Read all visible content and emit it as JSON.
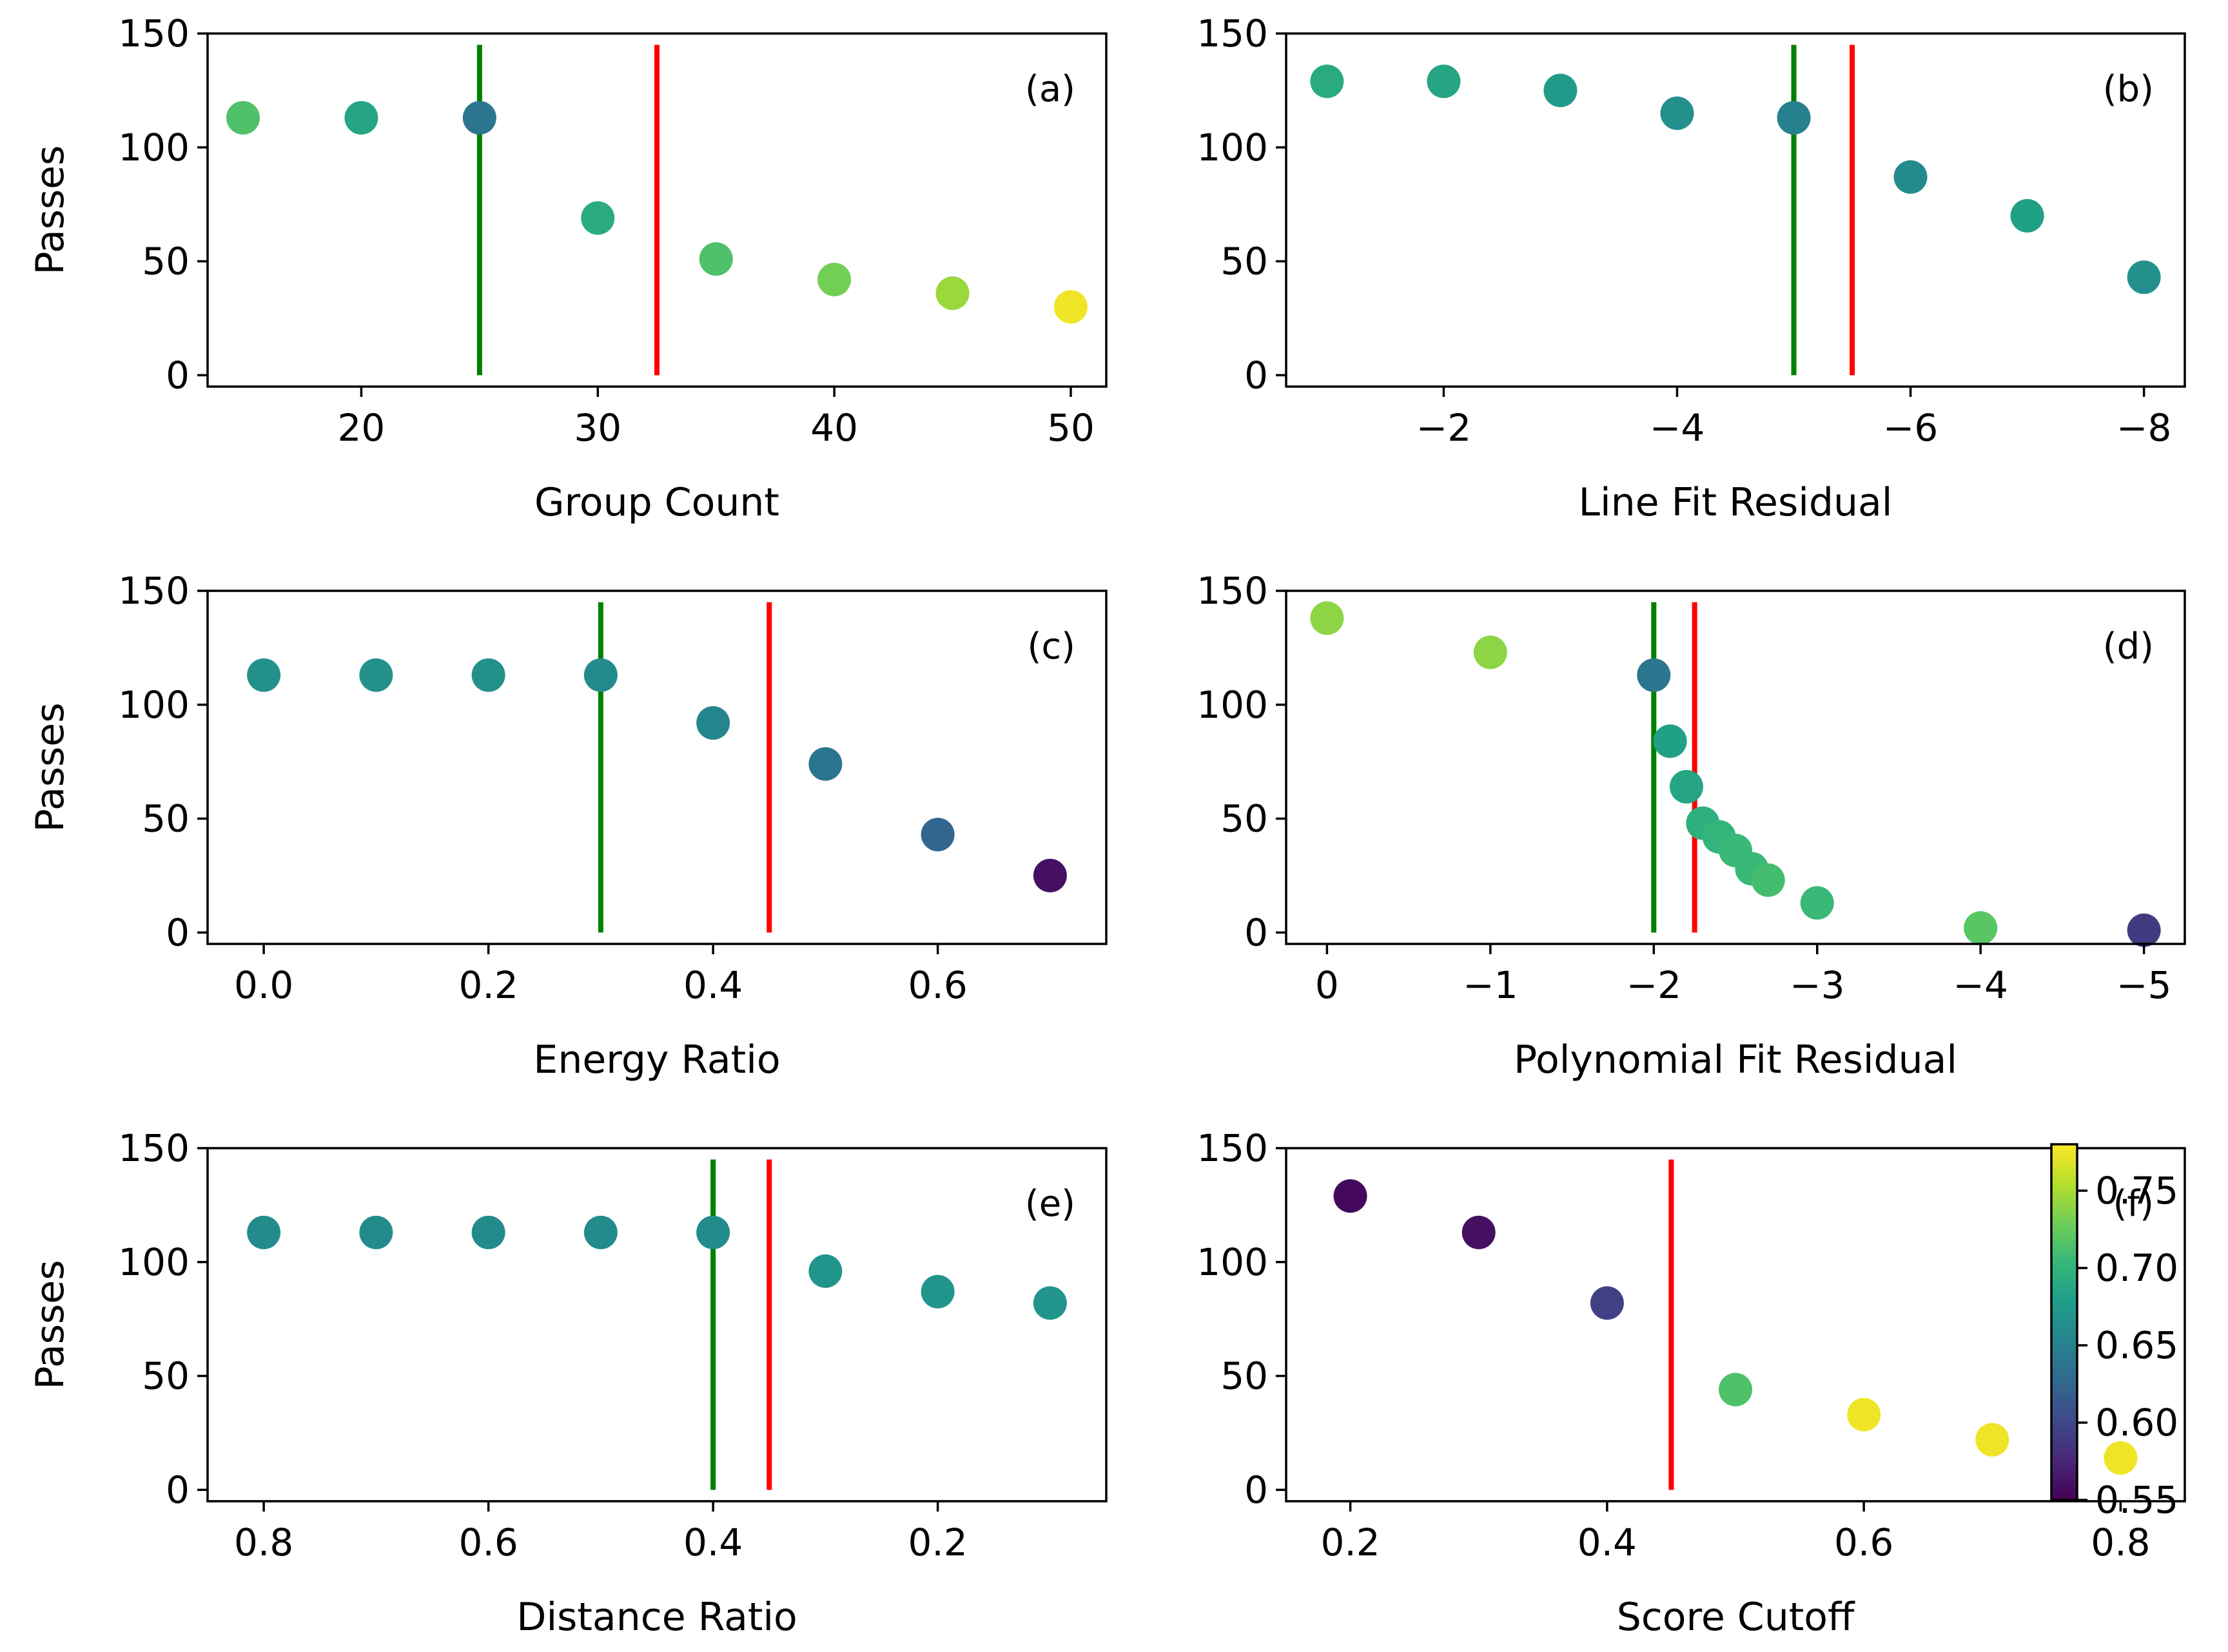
{
  "chart_data": [
    {
      "type": "scatter",
      "panel": "(a)",
      "xlabel": "Group Count",
      "ylabel": "Passes",
      "xlim": [
        13.5,
        51.5
      ],
      "ylim": [
        -5,
        150
      ],
      "xticks": [
        20,
        30,
        40,
        50
      ],
      "xtick_labels": [
        "20",
        "30",
        "40",
        "50"
      ],
      "yticks": [
        0,
        50,
        100,
        150
      ],
      "ytick_labels": [
        "0",
        "50",
        "100",
        "150"
      ],
      "points": [
        {
          "x": 15,
          "y": 113,
          "c": 0.715
        },
        {
          "x": 20,
          "y": 113,
          "c": 0.685
        },
        {
          "x": 25,
          "y": 113,
          "c": 0.64
        },
        {
          "x": 30,
          "y": 69,
          "c": 0.69
        },
        {
          "x": 35,
          "y": 51,
          "c": 0.715
        },
        {
          "x": 40,
          "y": 42,
          "c": 0.73
        },
        {
          "x": 45,
          "y": 36,
          "c": 0.745
        },
        {
          "x": 50,
          "y": 30,
          "c": 0.775
        }
      ],
      "vlines": [
        {
          "x": 25,
          "color": "#008000"
        },
        {
          "x": 32.5,
          "color": "#ff0000"
        }
      ]
    },
    {
      "type": "scatter",
      "panel": "(b)",
      "xlabel": "Line Fit Residual",
      "ylabel": "",
      "xlim": [
        -0.65,
        -8.35
      ],
      "ylim": [
        -5,
        150
      ],
      "xticks": [
        -2,
        -4,
        -6,
        -8
      ],
      "xtick_labels": [
        "−2",
        "−4",
        "−6",
        "−8"
      ],
      "yticks": [
        0,
        50,
        100,
        150
      ],
      "ytick_labels": [
        "0",
        "50",
        "100",
        "150"
      ],
      "points": [
        {
          "x": -1,
          "y": 129,
          "c": 0.69
        },
        {
          "x": -2,
          "y": 129,
          "c": 0.685
        },
        {
          "x": -3,
          "y": 125,
          "c": 0.675
        },
        {
          "x": -4,
          "y": 115,
          "c": 0.665
        },
        {
          "x": -5,
          "y": 113,
          "c": 0.65
        },
        {
          "x": -6,
          "y": 87,
          "c": 0.66
        },
        {
          "x": -7,
          "y": 70,
          "c": 0.68
        },
        {
          "x": -8,
          "y": 43,
          "c": 0.665
        }
      ],
      "vlines": [
        {
          "x": -5,
          "color": "#008000"
        },
        {
          "x": -5.5,
          "color": "#ff0000"
        }
      ]
    },
    {
      "type": "scatter",
      "panel": "(c)",
      "xlabel": "Energy Ratio",
      "ylabel": "Passes",
      "xlim": [
        -0.05,
        0.75
      ],
      "ylim": [
        -5,
        150
      ],
      "xticks": [
        0.0,
        0.2,
        0.4,
        0.6
      ],
      "xtick_labels": [
        "0.0",
        "0.2",
        "0.4",
        "0.6"
      ],
      "yticks": [
        0,
        50,
        100,
        150
      ],
      "ytick_labels": [
        "0",
        "50",
        "100",
        "150"
      ],
      "points": [
        {
          "x": 0.0,
          "y": 113,
          "c": 0.665
        },
        {
          "x": 0.1,
          "y": 113,
          "c": 0.665
        },
        {
          "x": 0.2,
          "y": 113,
          "c": 0.665
        },
        {
          "x": 0.3,
          "y": 113,
          "c": 0.66
        },
        {
          "x": 0.4,
          "y": 92,
          "c": 0.655
        },
        {
          "x": 0.5,
          "y": 74,
          "c": 0.64
        },
        {
          "x": 0.6,
          "y": 43,
          "c": 0.625
        },
        {
          "x": 0.7,
          "y": 25,
          "c": 0.56
        }
      ],
      "vlines": [
        {
          "x": 0.3,
          "color": "#008000"
        },
        {
          "x": 0.45,
          "color": "#ff0000"
        }
      ]
    },
    {
      "type": "scatter",
      "panel": "(d)",
      "xlabel": "Polynomial Fit Residual",
      "ylabel": "",
      "xlim": [
        0.25,
        -5.25
      ],
      "ylim": [
        -5,
        150
      ],
      "xticks": [
        0,
        -1,
        -2,
        -3,
        -4,
        -5
      ],
      "xtick_labels": [
        "0",
        "−1",
        "−2",
        "−3",
        "−4",
        "−5"
      ],
      "yticks": [
        0,
        50,
        100,
        150
      ],
      "ytick_labels": [
        "0",
        "50",
        "100",
        "150"
      ],
      "points": [
        {
          "x": 0,
          "y": 138,
          "c": 0.74
        },
        {
          "x": -1,
          "y": 123,
          "c": 0.74
        },
        {
          "x": -2,
          "y": 113,
          "c": 0.64
        },
        {
          "x": -2.1,
          "y": 84,
          "c": 0.68
        },
        {
          "x": -2.2,
          "y": 64,
          "c": 0.685
        },
        {
          "x": -2.3,
          "y": 48,
          "c": 0.695
        },
        {
          "x": -2.4,
          "y": 42,
          "c": 0.7
        },
        {
          "x": -2.5,
          "y": 36,
          "c": 0.705
        },
        {
          "x": -2.6,
          "y": 28,
          "c": 0.705
        },
        {
          "x": -2.7,
          "y": 23,
          "c": 0.71
        },
        {
          "x": -3,
          "y": 13,
          "c": 0.705
        },
        {
          "x": -4,
          "y": 2,
          "c": 0.72
        },
        {
          "x": -5,
          "y": 1,
          "c": 0.59
        }
      ],
      "vlines": [
        {
          "x": -2,
          "color": "#008000"
        },
        {
          "x": -2.25,
          "color": "#ff0000"
        }
      ]
    },
    {
      "type": "scatter",
      "panel": "(e)",
      "xlabel": "Distance Ratio",
      "ylabel": "Passes",
      "xlim": [
        0.85,
        0.05
      ],
      "ylim": [
        -5,
        150
      ],
      "xticks": [
        0.8,
        0.6,
        0.4,
        0.2
      ],
      "xtick_labels": [
        "0.8",
        "0.6",
        "0.4",
        "0.2"
      ],
      "yticks": [
        0,
        50,
        100,
        150
      ],
      "ytick_labels": [
        "0",
        "50",
        "100",
        "150"
      ],
      "points": [
        {
          "x": 0.8,
          "y": 113,
          "c": 0.66
        },
        {
          "x": 0.7,
          "y": 113,
          "c": 0.66
        },
        {
          "x": 0.6,
          "y": 113,
          "c": 0.66
        },
        {
          "x": 0.5,
          "y": 113,
          "c": 0.66
        },
        {
          "x": 0.4,
          "y": 113,
          "c": 0.66
        },
        {
          "x": 0.3,
          "y": 96,
          "c": 0.67
        },
        {
          "x": 0.2,
          "y": 87,
          "c": 0.67
        },
        {
          "x": 0.1,
          "y": 82,
          "c": 0.67
        }
      ],
      "vlines": [
        {
          "x": 0.4,
          "color": "#008000"
        },
        {
          "x": 0.35,
          "color": "#ff0000"
        }
      ]
    },
    {
      "type": "scatter",
      "panel": "(f)",
      "xlabel": "Score Cutoff",
      "ylabel": "",
      "xlim": [
        0.15,
        0.85
      ],
      "ylim": [
        -5,
        150
      ],
      "xticks": [
        0.2,
        0.4,
        0.6,
        0.8
      ],
      "xtick_labels": [
        "0.2",
        "0.4",
        "0.6",
        "0.8"
      ],
      "yticks": [
        0,
        50,
        100,
        150
      ],
      "ytick_labels": [
        "0",
        "50",
        "100",
        "150"
      ],
      "points": [
        {
          "x": 0.2,
          "y": 129,
          "c": 0.555
        },
        {
          "x": 0.3,
          "y": 113,
          "c": 0.56
        },
        {
          "x": 0.4,
          "y": 82,
          "c": 0.595
        },
        {
          "x": 0.5,
          "y": 44,
          "c": 0.715
        },
        {
          "x": 0.6,
          "y": 33,
          "c": 0.775
        },
        {
          "x": 0.7,
          "y": 22,
          "c": 0.775
        },
        {
          "x": 0.8,
          "y": 14,
          "c": 0.775
        }
      ],
      "vlines": [
        {
          "x": 0.45,
          "color": "#ff0000"
        }
      ]
    }
  ],
  "colorbar": {
    "colormap": "viridis",
    "range": [
      0.55,
      0.78
    ],
    "ticks": [
      0.55,
      0.6,
      0.65,
      0.7,
      0.75
    ],
    "tick_labels": [
      "0.55",
      "0.60",
      "0.65",
      "0.70",
      "0.75"
    ]
  },
  "viridis_stops": [
    "#440154",
    "#482878",
    "#3e4989",
    "#31688e",
    "#26828e",
    "#1f9e89",
    "#35b779",
    "#6ece58",
    "#b5de2b",
    "#fde725"
  ]
}
